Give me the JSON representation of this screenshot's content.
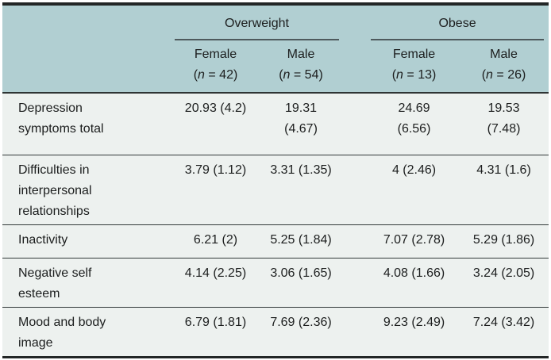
{
  "table": {
    "groups": [
      {
        "label": "Overweight",
        "subcolumns": [
          {
            "label": "Female",
            "n_open": "(",
            "n_symbol": "n",
            "n_rest": " = 42)"
          },
          {
            "label": "Male",
            "n_open": "(",
            "n_symbol": "n",
            "n_rest": " = 54)"
          }
        ]
      },
      {
        "label": "Obese",
        "subcolumns": [
          {
            "label": "Female",
            "n_open": "(",
            "n_symbol": "n",
            "n_rest": " = 13)"
          },
          {
            "label": "Male",
            "n_open": "(",
            "n_symbol": "n",
            "n_rest": " = 26)"
          }
        ]
      }
    ],
    "rows": [
      {
        "label": [
          "Depression",
          "symptoms total"
        ],
        "values": [
          [
            "20.93 (4.2)"
          ],
          [
            "19.31",
            "(4.67)"
          ],
          [
            "24.69",
            "(6.56)"
          ],
          [
            "19.53",
            "(7.48)"
          ]
        ]
      },
      {
        "label": [
          "Difficulties in",
          "interpersonal",
          "relationships"
        ],
        "values": [
          [
            "3.79 (1.12)"
          ],
          [
            "3.31 (1.35)"
          ],
          [
            "4 (2.46)"
          ],
          [
            "4.31 (1.6)"
          ]
        ]
      },
      {
        "label": [
          "Inactivity"
        ],
        "values": [
          [
            "6.21 (2)"
          ],
          [
            "5.25 (1.84)"
          ],
          [
            "7.07 (2.78)"
          ],
          [
            "5.29 (1.86)"
          ]
        ]
      },
      {
        "label": [
          "Negative self",
          "esteem"
        ],
        "values": [
          [
            "4.14 (2.25)"
          ],
          [
            "3.06 (1.65)"
          ],
          [
            "4.08 (1.66)"
          ],
          [
            "3.24 (2.05)"
          ]
        ]
      },
      {
        "label": [
          "Mood and body",
          "image"
        ],
        "values": [
          [
            "6.79 (1.81)"
          ],
          [
            "7.69 (2.36)"
          ],
          [
            "9.23 (2.49)"
          ],
          [
            "7.24 (3.42)"
          ]
        ]
      }
    ],
    "colors": {
      "header_background": "#b1cfd2",
      "body_background": "#edf1ef",
      "text": "#1c1e1e",
      "heavy_rule": "#222626",
      "row_rule": "#333a3a",
      "spanner_rule": "#4e5a5d"
    }
  }
}
